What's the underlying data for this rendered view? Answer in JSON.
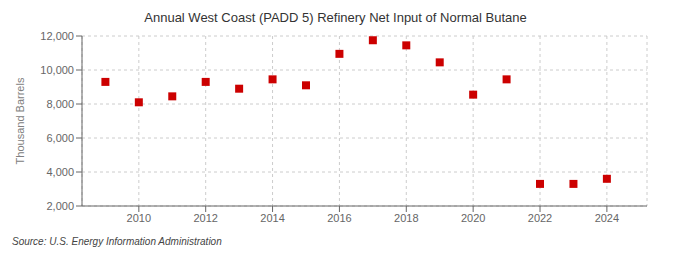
{
  "chart_data": {
    "type": "scatter",
    "title": "Annual West Coast (PADD 5) Refinery Net Input of Normal Butane",
    "y_label": "Thousand Barrels",
    "annotations": [
      "Source: U.S. Energy Information Administration"
    ],
    "x": [
      2009,
      2010,
      2011,
      2012,
      2013,
      2014,
      2015,
      2016,
      2017,
      2018,
      2019,
      2020,
      2021,
      2022,
      2023,
      2024
    ],
    "values": [
      9300,
      8100,
      8450,
      9300,
      8900,
      9450,
      9100,
      10950,
      11750,
      11450,
      10450,
      8550,
      9450,
      3300,
      3300,
      3600
    ],
    "color": "#CC0000",
    "marker": "square",
    "xlim": [
      2008.3,
      2025.2
    ],
    "xticks": [
      2010,
      2012,
      2014,
      2016,
      2018,
      2020,
      2022,
      2024
    ],
    "ylim": [
      2000,
      12000
    ],
    "yticks": [
      {
        "value": 2000,
        "label": "2,000"
      },
      {
        "value": 4000,
        "label": "4,000"
      },
      {
        "value": 6000,
        "label": "6,000"
      },
      {
        "value": 8000,
        "label": "8,000"
      },
      {
        "value": 10000,
        "label": "10,000"
      },
      {
        "value": 12000,
        "label": "12,000"
      }
    ],
    "grid": true
  }
}
